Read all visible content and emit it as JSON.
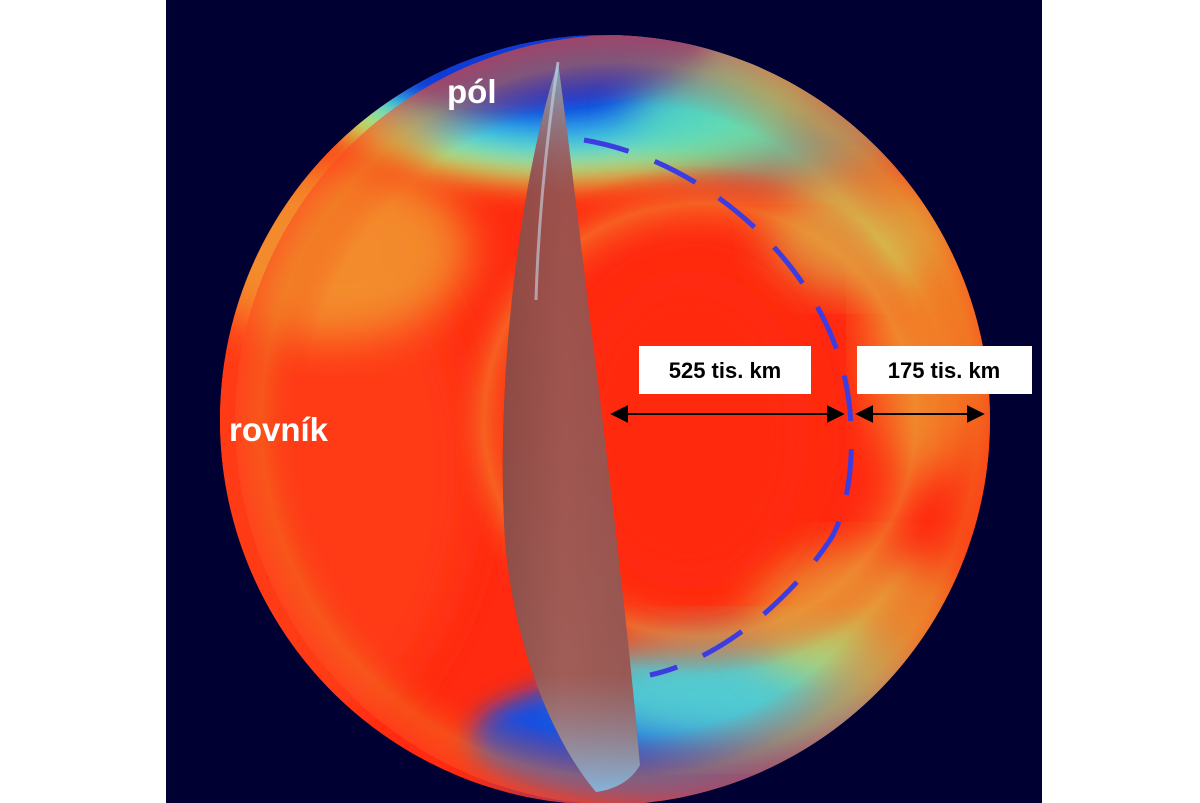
{
  "labels": {
    "pole": "pól",
    "equator": "rovník",
    "inner_distance": "525 tis. km",
    "outer_distance": "175 tis. km"
  },
  "colors": {
    "background": "#000033",
    "hot": "#ff2a10",
    "warm": "#f07a20",
    "mid": "#d8e048",
    "cool": "#40d8e0",
    "cold": "#0a3ad8",
    "boundary_line": "#3d3ce0",
    "label_box": "#ffffff",
    "arrow": "#000000"
  }
}
